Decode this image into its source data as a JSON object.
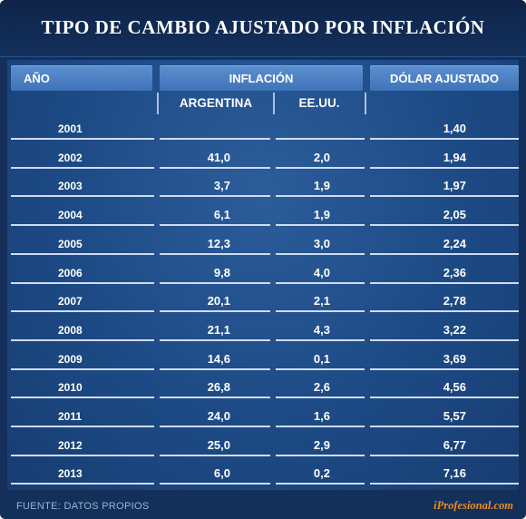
{
  "title": "TIPO DE CAMBIO AJUSTADO POR INFLACIÓN",
  "headers": {
    "year": "AÑO",
    "inflation": "INFLACIÓN",
    "argentina": "ARGENTINA",
    "usa": "EE.UU.",
    "adjusted": "DÓLAR AJUSTADO"
  },
  "footer": {
    "source": "FUENTE:  DATOS PROPIOS",
    "brand": "iProfesional.com"
  },
  "colors": {
    "background": "#142f5a",
    "panel": "#1d4a85",
    "header": "#4f84c7",
    "brand": "#f08a1e"
  },
  "chart_data": {
    "type": "table",
    "title": "TIPO DE CAMBIO AJUSTADO POR INFLACIÓN",
    "columns": [
      "AÑO",
      "ARGENTINA",
      "EE.UU.",
      "DÓLAR AJUSTADO"
    ],
    "rows": [
      {
        "year": "2001",
        "argentina": "",
        "usa": "",
        "adjusted": "1,40"
      },
      {
        "year": "2002",
        "argentina": "41,0",
        "usa": "2,0",
        "adjusted": "1,94"
      },
      {
        "year": "2003",
        "argentina": "3,7",
        "usa": "1,9",
        "adjusted": "1,97"
      },
      {
        "year": "2004",
        "argentina": "6,1",
        "usa": "1,9",
        "adjusted": "2,05"
      },
      {
        "year": "2005",
        "argentina": "12,3",
        "usa": "3,0",
        "adjusted": "2,24"
      },
      {
        "year": "2006",
        "argentina": "9,8",
        "usa": "4,0",
        "adjusted": "2,36"
      },
      {
        "year": "2007",
        "argentina": "20,1",
        "usa": "2,1",
        "adjusted": "2,78"
      },
      {
        "year": "2008",
        "argentina": "21,1",
        "usa": "4,3",
        "adjusted": "3,22"
      },
      {
        "year": "2009",
        "argentina": "14,6",
        "usa": "0,1",
        "adjusted": "3,69"
      },
      {
        "year": "2010",
        "argentina": "26,8",
        "usa": "2,6",
        "adjusted": "4,56"
      },
      {
        "year": "2011",
        "argentina": "24,0",
        "usa": "1,6",
        "adjusted": "5,57"
      },
      {
        "year": "2012",
        "argentina": "25,0",
        "usa": "2,9",
        "adjusted": "6,77"
      },
      {
        "year": "2013",
        "argentina": "6,0",
        "usa": "0,2",
        "adjusted": "7,16"
      }
    ]
  }
}
